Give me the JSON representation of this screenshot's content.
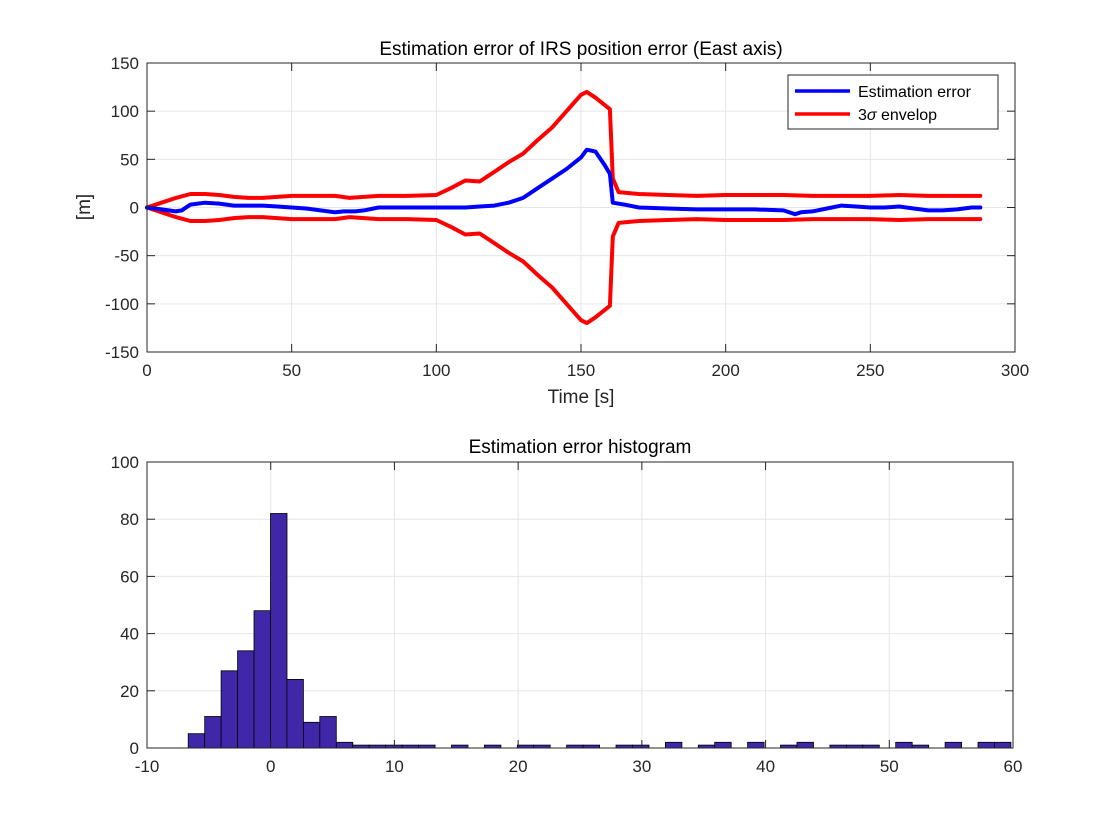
{
  "chart_data": [
    {
      "type": "line",
      "title": "Estimation error of IRS position error (East axis)",
      "xlabel": "Time [s]",
      "ylabel": "[m]",
      "xlim": [
        0,
        300
      ],
      "ylim": [
        -150,
        150
      ],
      "xticks": [
        "0",
        "50",
        "100",
        "150",
        "200",
        "250",
        "300"
      ],
      "yticks": [
        "-150",
        "-100",
        "-50",
        "0",
        "50",
        "100",
        "150"
      ],
      "grid": true,
      "legend_position": "top-right",
      "legend": [
        {
          "prefix": "Estimation error",
          "symbol": "",
          "suffix": "",
          "color": "#0000ff"
        },
        {
          "prefix": "3",
          "symbol": "σ",
          "suffix": " envelop",
          "color": "#ff0000"
        }
      ],
      "series": [
        {
          "name": "Estimation error",
          "color": "#0000ff",
          "x": [
            0,
            5,
            10,
            12,
            15,
            20,
            25,
            30,
            35,
            40,
            45,
            50,
            55,
            60,
            65,
            68,
            72,
            75,
            80,
            90,
            100,
            110,
            115,
            120,
            125,
            130,
            135,
            140,
            145,
            150,
            152,
            155,
            158,
            160,
            161,
            165,
            170,
            180,
            190,
            200,
            210,
            220,
            224,
            226,
            230,
            235,
            240,
            245,
            250,
            255,
            260,
            265,
            270,
            275,
            280,
            285,
            288
          ],
          "y": [
            0,
            -2,
            -4,
            -3,
            3,
            5,
            4,
            2,
            2,
            2,
            1,
            0,
            -1,
            -3,
            -5,
            -4,
            -4,
            -3,
            0,
            0,
            0,
            0,
            1,
            2,
            5,
            10,
            20,
            30,
            40,
            52,
            60,
            58,
            45,
            35,
            5,
            3,
            0,
            -1,
            -2,
            -2,
            -2,
            -3,
            -7,
            -5,
            -4,
            -1,
            2,
            1,
            0,
            0,
            1,
            -1,
            -3,
            -3,
            -2,
            0,
            0
          ]
        },
        {
          "name": "3σ envelop",
          "color": "#ff0000",
          "x": [
            0,
            5,
            10,
            15,
            20,
            25,
            30,
            35,
            40,
            50,
            60,
            65,
            70,
            75,
            80,
            90,
            100,
            105,
            110,
            115,
            120,
            125,
            130,
            135,
            140,
            145,
            150,
            152,
            155,
            160,
            161,
            163,
            170,
            180,
            190,
            200,
            210,
            220,
            230,
            240,
            250,
            260,
            270,
            280,
            288
          ],
          "y": [
            0,
            5,
            10,
            14,
            14,
            13,
            11,
            10,
            10,
            12,
            12,
            12,
            10,
            11,
            12,
            12,
            13,
            20,
            28,
            27,
            37,
            47,
            56,
            70,
            83,
            100,
            117,
            120,
            114,
            102,
            30,
            16,
            14,
            13,
            12,
            13,
            13,
            13,
            12,
            12,
            12,
            13,
            12,
            12,
            12
          ]
        }
      ]
    },
    {
      "type": "bar",
      "title": "Estimation error histogram",
      "xlabel": "",
      "ylabel": "",
      "xlim": [
        -10,
        60
      ],
      "ylim": [
        0,
        100
      ],
      "xticks": [
        "-10",
        "0",
        "10",
        "20",
        "30",
        "40",
        "50",
        "60"
      ],
      "yticks": [
        "0",
        "20",
        "40",
        "60",
        "80",
        "100"
      ],
      "grid": true,
      "bin_width": 1.33,
      "bar_color": "#3f27a8",
      "edge_color": "#000000",
      "bins": [
        {
          "left": -6.67,
          "count": 5
        },
        {
          "left": -5.34,
          "count": 11
        },
        {
          "left": -4.01,
          "count": 27
        },
        {
          "left": -2.68,
          "count": 34
        },
        {
          "left": -1.35,
          "count": 48
        },
        {
          "left": -0.02,
          "count": 82
        },
        {
          "left": 1.31,
          "count": 24
        },
        {
          "left": 2.64,
          "count": 9
        },
        {
          "left": 3.97,
          "count": 11
        },
        {
          "left": 5.3,
          "count": 2
        },
        {
          "left": 6.63,
          "count": 1
        },
        {
          "left": 7.96,
          "count": 1
        },
        {
          "left": 9.29,
          "count": 1
        },
        {
          "left": 10.62,
          "count": 1
        },
        {
          "left": 11.95,
          "count": 1
        },
        {
          "left": 14.61,
          "count": 1
        },
        {
          "left": 17.27,
          "count": 1
        },
        {
          "left": 19.93,
          "count": 1
        },
        {
          "left": 21.26,
          "count": 1
        },
        {
          "left": 23.92,
          "count": 1
        },
        {
          "left": 25.25,
          "count": 1
        },
        {
          "left": 27.91,
          "count": 1
        },
        {
          "left": 29.24,
          "count": 1
        },
        {
          "left": 31.9,
          "count": 2
        },
        {
          "left": 34.56,
          "count": 1
        },
        {
          "left": 35.89,
          "count": 2
        },
        {
          "left": 38.55,
          "count": 2
        },
        {
          "left": 41.21,
          "count": 1
        },
        {
          "left": 42.54,
          "count": 2
        },
        {
          "left": 45.2,
          "count": 1
        },
        {
          "left": 46.53,
          "count": 1
        },
        {
          "left": 47.86,
          "count": 1
        },
        {
          "left": 50.52,
          "count": 2
        },
        {
          "left": 51.85,
          "count": 1
        },
        {
          "left": 54.51,
          "count": 2
        },
        {
          "left": 57.17,
          "count": 2
        },
        {
          "left": 58.5,
          "count": 2
        }
      ]
    }
  ]
}
